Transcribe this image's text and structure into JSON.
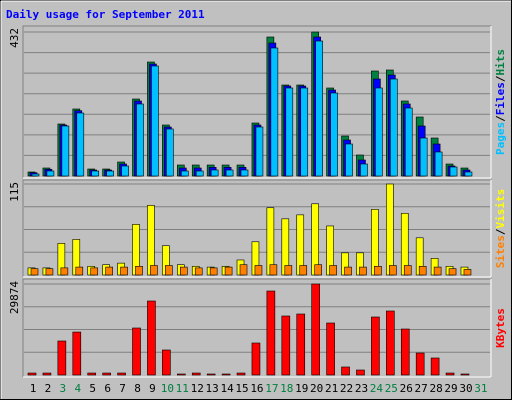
{
  "chart_data": {
    "type": "bar",
    "title": "Daily usage for September 2011",
    "categories": [
      "1",
      "2",
      "3",
      "4",
      "5",
      "6",
      "7",
      "8",
      "9",
      "10",
      "11",
      "12",
      "13",
      "14",
      "15",
      "16",
      "17",
      "18",
      "19",
      "20",
      "21",
      "22",
      "23",
      "24",
      "25",
      "26",
      "27",
      "28",
      "29",
      "30",
      "31"
    ],
    "category_colors": [
      "#000000",
      "#000000",
      "#008040",
      "#008040",
      "#000000",
      "#000000",
      "#000000",
      "#000000",
      "#000000",
      "#008040",
      "#008040",
      "#000000",
      "#000000",
      "#000000",
      "#000000",
      "#000000",
      "#008040",
      "#008040",
      "#000000",
      "#000000",
      "#000000",
      "#000000",
      "#000000",
      "#008040",
      "#008040",
      "#000000",
      "#000000",
      "#000000",
      "#000000",
      "#000000",
      "#008040"
    ],
    "legend_separator": "/",
    "panels": [
      {
        "ylim": [
          0,
          432
        ],
        "yticks": [
          432
        ],
        "series": [
          {
            "name": "Pages",
            "color": "#00c0ff",
            "values": [
              6,
              15,
              150,
              189,
              15,
              15,
              30,
              216,
              330,
              141,
              15,
              15,
              18,
              18,
              18,
              147,
              384,
              264,
              264,
              405,
              249,
              96,
              36,
              264,
              291,
              204,
              114,
              72,
              27,
              12,
              0
            ]
          },
          {
            "name": "Files",
            "color": "#0000ff",
            "values": [
              10,
              20,
              153,
              196,
              18,
              18,
              36,
              225,
              336,
              147,
              24,
              24,
              26,
              26,
              26,
              153,
              399,
              270,
              270,
              417,
              258,
              108,
              48,
              291,
              303,
              216,
              150,
              96,
              30,
              18,
              0
            ]
          },
          {
            "name": "Hits",
            "color": "#008040",
            "values": [
              12,
              24,
              156,
              201,
              21,
              21,
              42,
              231,
              342,
              153,
              33,
              33,
              33,
              33,
              33,
              159,
              417,
              273,
              273,
              432,
              264,
              120,
              63,
              315,
              318,
              225,
              177,
              114,
              36,
              24,
              0
            ]
          }
        ]
      },
      {
        "ylim": [
          0,
          115
        ],
        "yticks": [
          115
        ],
        "series": [
          {
            "name": "Sites",
            "color": "#ff8000",
            "values": [
              8,
              8,
              9,
              10,
              9,
              10,
              10,
              11,
              12,
              12,
              10,
              9,
              9,
              10,
              13,
              12,
              13,
              12,
              12,
              13,
              12,
              10,
              10,
              11,
              12,
              12,
              11,
              10,
              8,
              7,
              0
            ]
          },
          {
            "name": "Visits",
            "color": "#ffff00",
            "values": [
              9,
              9,
              40,
              45,
              11,
              13,
              15,
              64,
              88,
              37,
              13,
              11,
              10,
              11,
              19,
              42,
              85,
              71,
              76,
              90,
              62,
              28,
              28,
              83,
              115,
              78,
              47,
              21,
              11,
              10,
              0
            ]
          }
        ]
      },
      {
        "ylim": [
          0,
          29874
        ],
        "yticks": [
          29874
        ],
        "series": [
          {
            "name": "KBytes",
            "color": "#ff0000",
            "values": [
              650,
              650,
              11160,
              14100,
              650,
              650,
              650,
              15430,
              24290,
              8210,
              330,
              650,
              330,
              330,
              650,
              10500,
              27570,
              19370,
              20020,
              29874,
              17070,
              2630,
              1640,
              19040,
              21010,
              15100,
              7220,
              5580,
              650,
              330,
              0
            ]
          }
        ]
      }
    ]
  }
}
